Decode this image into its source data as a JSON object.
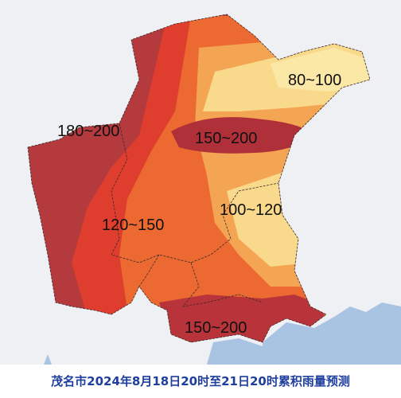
{
  "map": {
    "labels": [
      "80~100",
      "180~200",
      "150~200",
      "100~120",
      "120~150",
      "150~200"
    ]
  },
  "caption": "茂名市2024年8月18日20时至21日20时累积雨量预测"
}
